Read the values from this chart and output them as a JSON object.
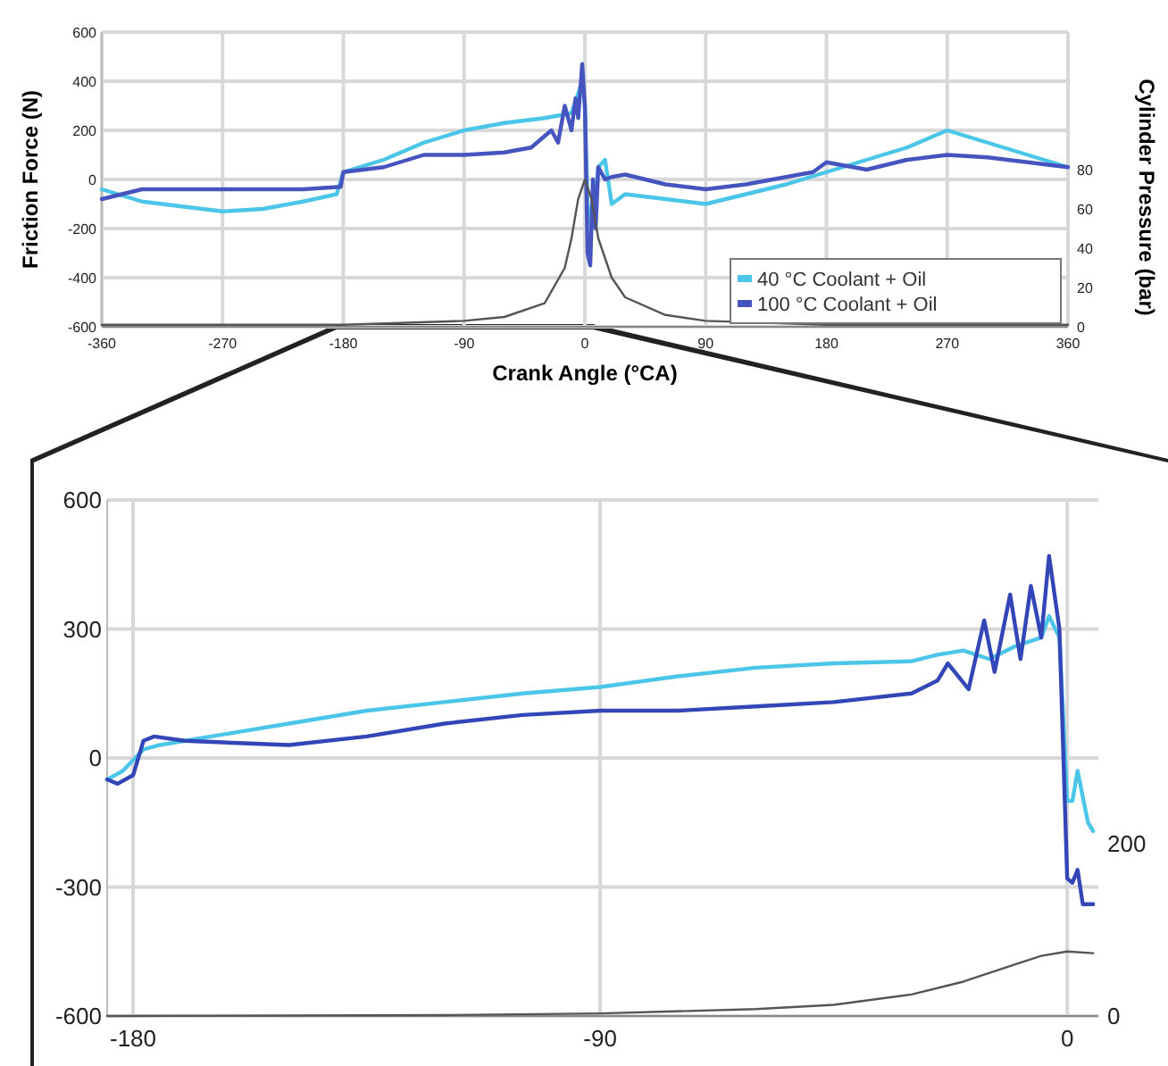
{
  "chart_data": [
    {
      "type": "line",
      "xlabel": "Crank Angle (°CA)",
      "ylabel": "Friction Force (N)",
      "y2label": "Cylinder Pressure (bar)",
      "xlim": [
        -360,
        360
      ],
      "xticks": [
        -360,
        -270,
        -180,
        -90,
        0,
        90,
        180,
        270,
        360
      ],
      "ylim": [
        -600,
        600
      ],
      "yticks": [
        -600,
        -400,
        -200,
        0,
        200,
        400,
        600
      ],
      "y2lim": [
        0,
        150
      ],
      "y2ticks": [
        0,
        20,
        40,
        60,
        80
      ],
      "grid": true,
      "legend": "bottom right",
      "series": [
        {
          "name": "40 °C Coolant + Oil",
          "color": "#4cc6e8",
          "x": [
            -360,
            -330,
            -300,
            -270,
            -240,
            -210,
            -185,
            -180,
            -150,
            -120,
            -90,
            -60,
            -30,
            -10,
            -5,
            -2,
            0,
            2,
            5,
            10,
            15,
            20,
            30,
            60,
            90,
            120,
            150,
            180,
            210,
            240,
            270,
            300,
            330,
            360
          ],
          "values": [
            -40,
            -90,
            -110,
            -130,
            -120,
            -90,
            -60,
            30,
            80,
            150,
            200,
            230,
            250,
            270,
            350,
            400,
            300,
            -100,
            -200,
            50,
            80,
            -100,
            -60,
            -80,
            -100,
            -60,
            -20,
            30,
            80,
            130,
            200,
            150,
            100,
            50
          ]
        },
        {
          "name": "100 °C Coolant + Oil",
          "color": "#4654c0",
          "x": [
            -360,
            -330,
            -270,
            -210,
            -182,
            -180,
            -150,
            -120,
            -90,
            -60,
            -40,
            -25,
            -20,
            -15,
            -10,
            -7,
            -5,
            -2,
            0,
            2,
            4,
            6,
            8,
            10,
            15,
            20,
            30,
            60,
            90,
            120,
            150,
            170,
            180,
            210,
            240,
            270,
            300,
            330,
            360
          ],
          "values": [
            -80,
            -40,
            -40,
            -40,
            -30,
            30,
            50,
            100,
            100,
            110,
            130,
            200,
            150,
            300,
            200,
            330,
            250,
            470,
            300,
            -300,
            -350,
            0,
            -200,
            50,
            0,
            10,
            20,
            -20,
            -40,
            -20,
            10,
            30,
            70,
            40,
            80,
            100,
            90,
            70,
            50
          ]
        },
        {
          "color": "#555555",
          "axis": "y2",
          "x": [
            -360,
            -180,
            -90,
            -60,
            -30,
            -15,
            -10,
            -5,
            0,
            5,
            10,
            20,
            30,
            60,
            90,
            180,
            360
          ],
          "values": [
            1,
            1,
            3,
            5,
            12,
            30,
            45,
            65,
            75,
            65,
            45,
            25,
            15,
            6,
            3,
            1,
            1
          ]
        }
      ]
    },
    {
      "type": "line",
      "xlim": [
        -185,
        6
      ],
      "xticks": [
        -180,
        -90,
        0
      ],
      "ylim": [
        -600,
        600
      ],
      "yticks": [
        -600,
        -300,
        0,
        300,
        600
      ],
      "y2lim": [
        0,
        600
      ],
      "y2ticks": [
        0,
        200
      ],
      "grid": true,
      "series": [
        {
          "color": "#4cc6e8",
          "x": [
            -185,
            -182,
            -178,
            -175,
            -170,
            -160,
            -150,
            -135,
            -120,
            -105,
            -90,
            -75,
            -60,
            -45,
            -30,
            -25,
            -20,
            -15,
            -10,
            -5,
            -3.5,
            -1.5,
            0,
            1,
            2,
            4,
            5
          ],
          "values": [
            -50,
            -30,
            20,
            30,
            40,
            60,
            80,
            110,
            130,
            150,
            165,
            190,
            210,
            220,
            225,
            240,
            250,
            230,
            260,
            280,
            330,
            280,
            -100,
            -100,
            -30,
            -150,
            -170
          ]
        },
        {
          "color": "#3346b8",
          "x": [
            -185,
            -183,
            -180,
            -178,
            -176,
            -170,
            -150,
            -135,
            -120,
            -105,
            -90,
            -75,
            -60,
            -45,
            -30,
            -25,
            -23,
            -19,
            -16,
            -14,
            -11,
            -9,
            -7,
            -5,
            -3.5,
            -1.5,
            0,
            1,
            2,
            3,
            5
          ],
          "values": [
            -50,
            -60,
            -40,
            40,
            50,
            40,
            30,
            50,
            80,
            100,
            110,
            110,
            120,
            130,
            150,
            180,
            220,
            160,
            320,
            200,
            380,
            230,
            400,
            280,
            470,
            300,
            -280,
            -290,
            -260,
            -340,
            -340
          ]
        },
        {
          "color": "#555555",
          "axis": "y2",
          "x": [
            -185,
            -120,
            -90,
            -60,
            -45,
            -30,
            -20,
            -10,
            -5,
            0,
            5
          ],
          "values": [
            0,
            1,
            3,
            8,
            13,
            25,
            40,
            60,
            70,
            75,
            73
          ]
        }
      ]
    }
  ]
}
